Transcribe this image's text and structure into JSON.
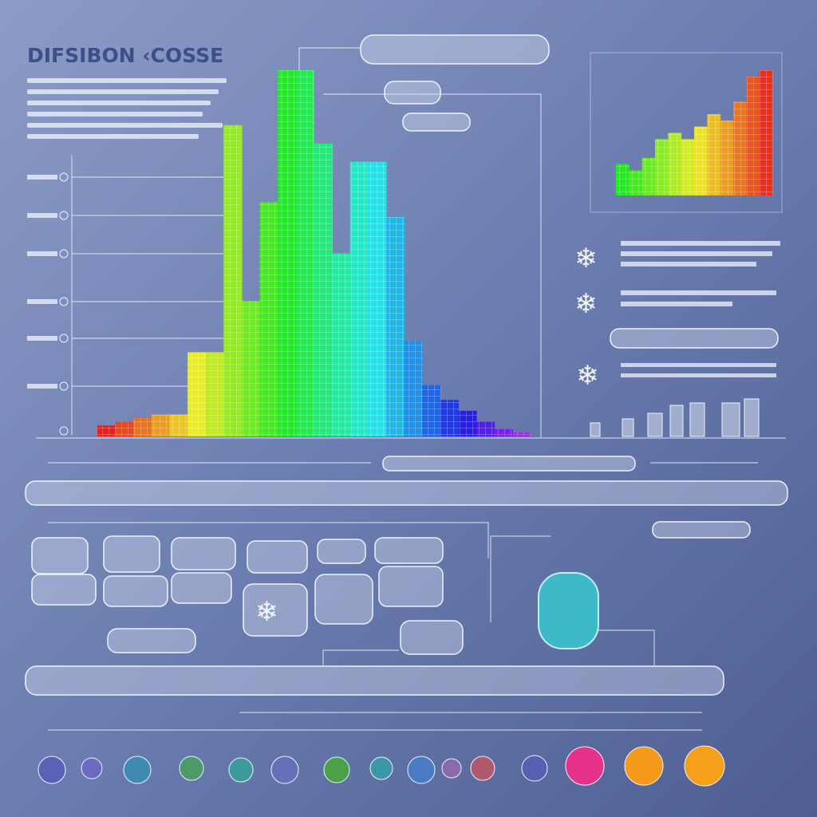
{
  "header": {
    "title": "DIFSIBON ‹COSSE"
  },
  "main_chart": {
    "values": [
      3,
      4,
      5,
      6,
      6,
      23,
      23,
      85,
      37,
      64,
      100,
      100,
      80,
      50,
      75,
      75,
      60,
      26,
      14,
      10,
      7,
      4,
      2,
      1
    ]
  },
  "mini_chart": {
    "values": [
      25,
      20,
      30,
      45,
      50,
      45,
      55,
      65,
      60,
      75,
      95,
      100
    ]
  }
}
